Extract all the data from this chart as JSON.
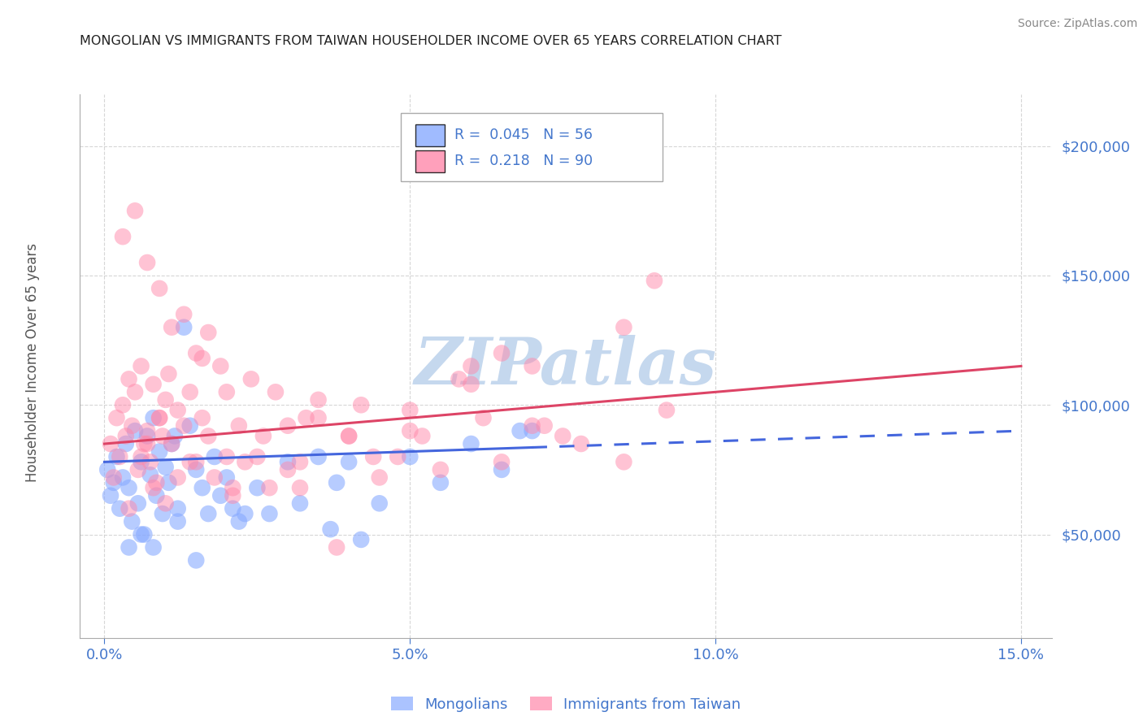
{
  "title": "MONGOLIAN VS IMMIGRANTS FROM TAIWAN HOUSEHOLDER INCOME OVER 65 YEARS CORRELATION CHART",
  "source": "Source: ZipAtlas.com",
  "ylabel": "Householder Income Over 65 years",
  "legend_label_mongolians": "Mongolians",
  "legend_label_taiwan": "Immigrants from Taiwan",
  "mongolian_color": "#88aaff",
  "taiwan_color": "#ff88aa",
  "mongolian_line_color": "#4466dd",
  "taiwan_line_color": "#dd4466",
  "background_color": "#ffffff",
  "grid_color": "#cccccc",
  "axis_color": "#4477cc",
  "title_color": "#222222",
  "watermark_text": "ZIPatlas",
  "watermark_color": "#c5d8ee",
  "r_mongolian": "0.045",
  "n_mongolian": "56",
  "r_taiwan": "0.218",
  "n_taiwan": "90",
  "xlim": [
    -0.4,
    15.5
  ],
  "ylim": [
    10000,
    220000
  ],
  "xtick_positions": [
    0.0,
    5.0,
    10.0,
    15.0
  ],
  "xtick_labels": [
    "0.0%",
    "5.0%",
    "10.0%",
    "15.0%"
  ],
  "ytick_positions": [
    50000,
    100000,
    150000,
    200000
  ],
  "ytick_labels": [
    "$50,000",
    "$100,000",
    "$150,000",
    "$200,000"
  ],
  "mongolian_scatter_x": [
    0.05,
    0.1,
    0.15,
    0.2,
    0.25,
    0.3,
    0.35,
    0.4,
    0.45,
    0.5,
    0.55,
    0.6,
    0.65,
    0.7,
    0.75,
    0.8,
    0.85,
    0.9,
    0.95,
    1.0,
    1.05,
    1.1,
    1.2,
    1.3,
    1.4,
    1.5,
    1.6,
    1.7,
    1.8,
    1.9,
    2.0,
    2.1,
    2.2,
    2.5,
    2.7,
    3.0,
    3.2,
    3.5,
    3.8,
    4.0,
    4.5,
    5.0,
    5.5,
    6.0,
    6.5,
    7.0,
    1.15,
    0.4,
    0.6,
    0.8,
    1.2,
    1.5,
    2.3,
    3.7,
    4.2,
    6.8
  ],
  "mongolian_scatter_y": [
    75000,
    65000,
    70000,
    80000,
    60000,
    72000,
    85000,
    68000,
    55000,
    90000,
    62000,
    78000,
    50000,
    88000,
    73000,
    95000,
    65000,
    82000,
    58000,
    76000,
    70000,
    85000,
    60000,
    130000,
    92000,
    75000,
    68000,
    58000,
    80000,
    65000,
    72000,
    60000,
    55000,
    68000,
    58000,
    78000,
    62000,
    80000,
    70000,
    78000,
    62000,
    80000,
    70000,
    85000,
    75000,
    90000,
    88000,
    45000,
    50000,
    45000,
    55000,
    40000,
    58000,
    52000,
    48000,
    90000
  ],
  "taiwan_scatter_x": [
    0.1,
    0.15,
    0.2,
    0.25,
    0.3,
    0.35,
    0.4,
    0.45,
    0.5,
    0.55,
    0.6,
    0.65,
    0.7,
    0.75,
    0.8,
    0.85,
    0.9,
    0.95,
    1.0,
    1.05,
    1.1,
    1.2,
    1.3,
    1.4,
    1.5,
    1.6,
    1.7,
    1.8,
    1.9,
    2.0,
    2.1,
    2.2,
    2.3,
    2.5,
    2.7,
    3.0,
    3.2,
    3.5,
    4.0,
    4.5,
    5.0,
    6.0,
    6.5,
    7.0,
    8.5,
    9.0,
    0.3,
    0.5,
    0.7,
    0.9,
    1.1,
    1.3,
    1.5,
    1.7,
    2.4,
    2.8,
    3.3,
    4.2,
    5.2,
    6.2,
    0.8,
    1.0,
    1.2,
    0.6,
    0.4,
    2.6,
    3.8,
    4.8,
    1.6,
    2.0,
    3.5,
    4.0,
    5.5,
    7.0,
    8.5,
    3.0,
    5.8,
    7.5,
    9.2,
    0.7,
    0.9,
    1.4,
    2.1,
    6.5,
    7.2,
    6.0,
    3.2,
    4.4,
    5.0,
    7.8
  ],
  "taiwan_scatter_y": [
    85000,
    72000,
    95000,
    80000,
    100000,
    88000,
    110000,
    92000,
    105000,
    75000,
    115000,
    85000,
    90000,
    78000,
    108000,
    70000,
    95000,
    88000,
    102000,
    112000,
    85000,
    98000,
    92000,
    105000,
    78000,
    95000,
    88000,
    72000,
    115000,
    80000,
    68000,
    92000,
    78000,
    80000,
    68000,
    92000,
    78000,
    102000,
    88000,
    72000,
    98000,
    108000,
    78000,
    115000,
    130000,
    148000,
    165000,
    175000,
    155000,
    145000,
    130000,
    135000,
    120000,
    128000,
    110000,
    105000,
    95000,
    100000,
    88000,
    95000,
    68000,
    62000,
    72000,
    80000,
    60000,
    88000,
    45000,
    80000,
    118000,
    105000,
    95000,
    88000,
    75000,
    92000,
    78000,
    75000,
    110000,
    88000,
    98000,
    85000,
    95000,
    78000,
    65000,
    120000,
    92000,
    115000,
    68000,
    80000,
    90000,
    85000
  ],
  "mongolian_trend_x": [
    0.0,
    15.0
  ],
  "mongolian_trend_y": [
    78000,
    90000
  ],
  "mongolian_solid_end": 7.0,
  "taiwan_trend_x": [
    0.0,
    15.0
  ],
  "taiwan_trend_y": [
    85000,
    115000
  ]
}
